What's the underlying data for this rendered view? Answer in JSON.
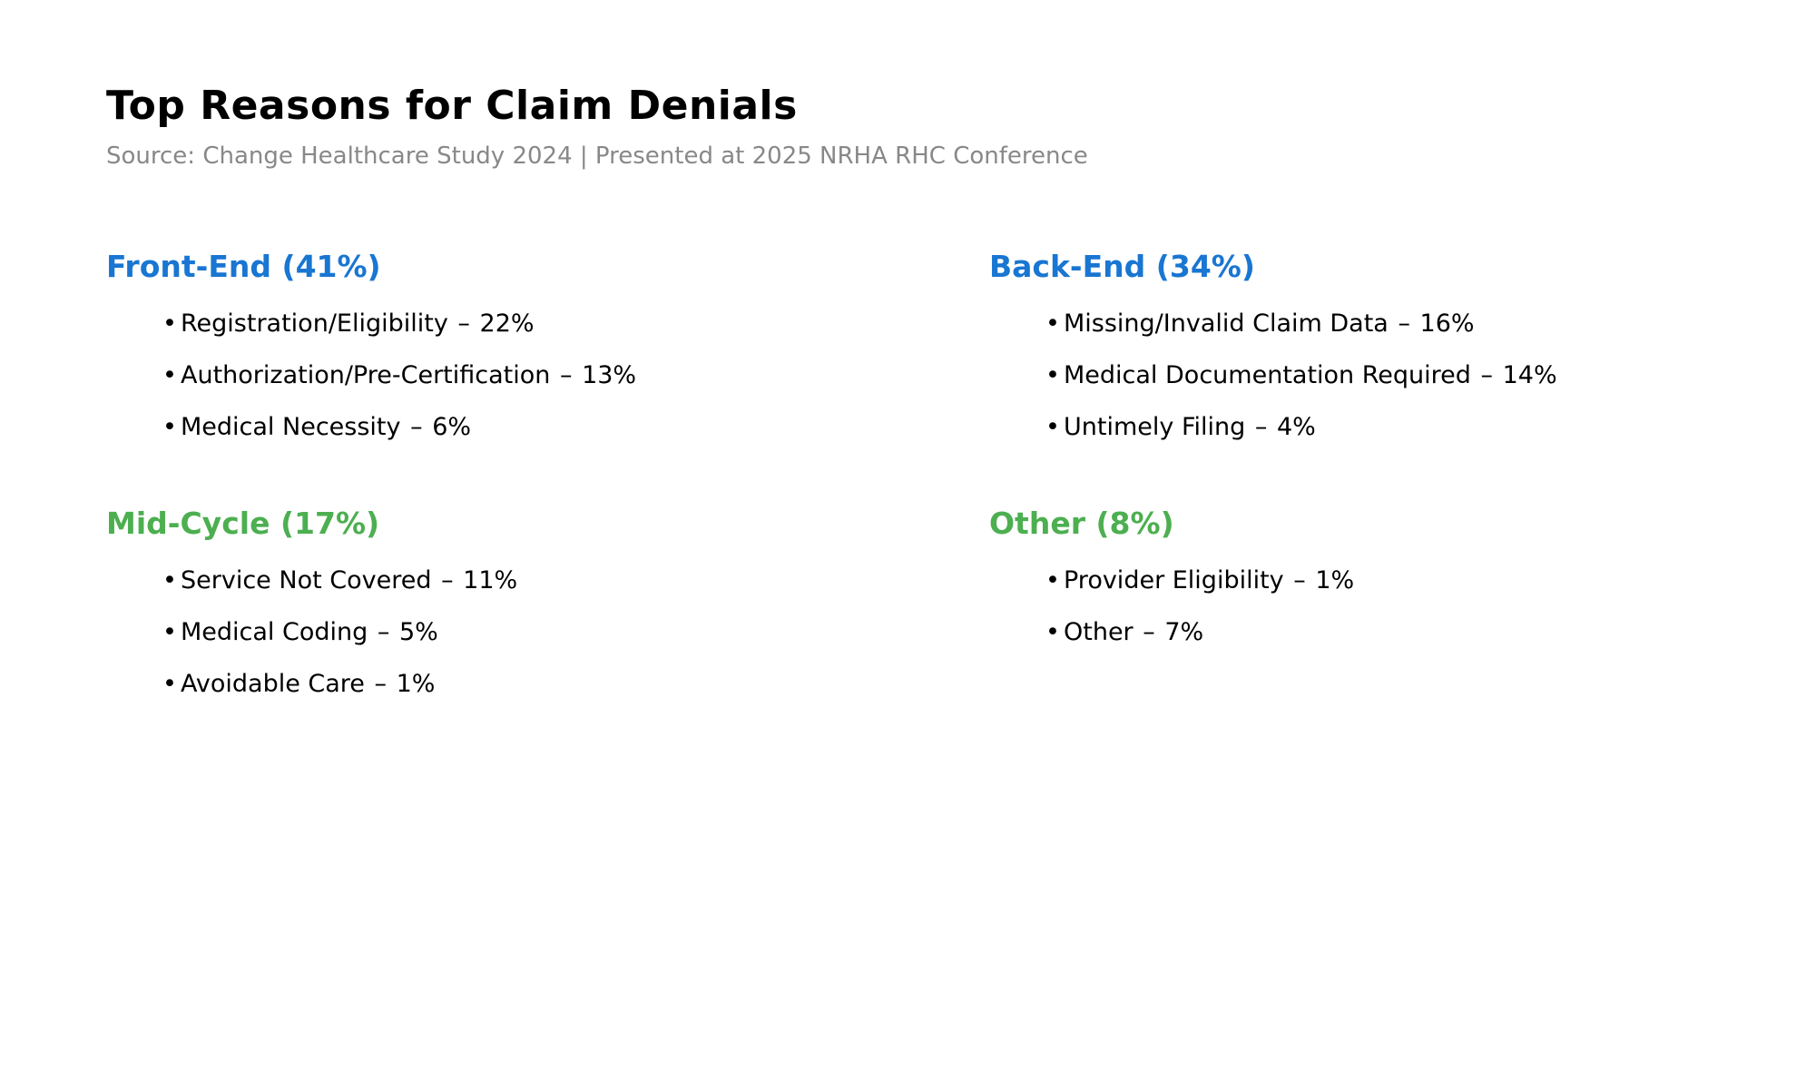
{
  "page": {
    "title": "Top Reasons for Claim Denials",
    "subtitle": "Source: Change Healthcare Study 2024 | Presented at 2025 NRHA RHC Conference"
  },
  "list": {
    "bullet_char": "•",
    "separator": "–"
  },
  "colors": {
    "heading_blue": "#1976D2",
    "heading_green": "#4CAF50",
    "title_black": "#000000",
    "subtitle_gray": "#888888",
    "background": "#FFFFFF"
  },
  "sections": [
    {
      "id": "front-end",
      "heading": "Front-End (41%)",
      "color": "#1976D2",
      "items": [
        {
          "label": "Registration/Eligibility",
          "pct": "22%"
        },
        {
          "label": "Authorization/Pre-Certification",
          "pct": "13%"
        },
        {
          "label": "Medical Necessity",
          "pct": "6%"
        }
      ]
    },
    {
      "id": "back-end",
      "heading": "Back-End (34%)",
      "color": "#1976D2",
      "items": [
        {
          "label": "Missing/Invalid Claim Data",
          "pct": "16%"
        },
        {
          "label": "Medical Documentation Required",
          "pct": "14%"
        },
        {
          "label": "Untimely Filing",
          "pct": "4%"
        }
      ]
    },
    {
      "id": "mid-cycle",
      "heading": "Mid-Cycle (17%)",
      "color": "#4CAF50",
      "items": [
        {
          "label": "Service Not Covered",
          "pct": "11%"
        },
        {
          "label": "Medical Coding",
          "pct": "5%"
        },
        {
          "label": "Avoidable Care",
          "pct": "1%"
        }
      ]
    },
    {
      "id": "other",
      "heading": "Other (8%)",
      "color": "#4CAF50",
      "items": [
        {
          "label": "Provider Eligibility",
          "pct": "1%"
        },
        {
          "label": "Other",
          "pct": "7%"
        }
      ]
    }
  ]
}
